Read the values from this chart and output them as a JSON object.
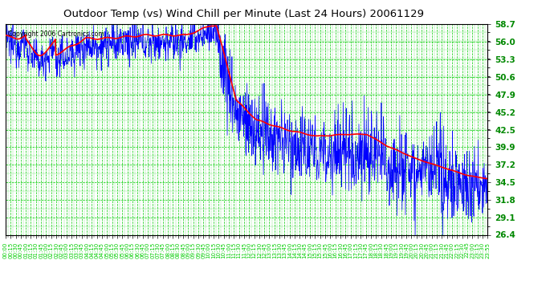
{
  "title": "Outdoor Temp (vs) Wind Chill per Minute (Last 24 Hours) 20061129",
  "copyright_text": "Copyright 2006 Cartronics.com",
  "y_ticks": [
    26.4,
    29.1,
    31.8,
    34.5,
    37.2,
    39.9,
    42.5,
    45.2,
    47.9,
    50.6,
    53.3,
    56.0,
    58.7
  ],
  "y_min": 26.4,
  "y_max": 58.7,
  "x_tick_labels": [
    "00:00",
    "00:15",
    "00:30",
    "00:45",
    "01:00",
    "01:15",
    "01:30",
    "01:45",
    "02:00",
    "02:15",
    "02:30",
    "02:45",
    "03:00",
    "03:15",
    "03:30",
    "03:45",
    "04:00",
    "04:15",
    "04:30",
    "04:45",
    "05:00",
    "05:15",
    "05:30",
    "05:45",
    "06:00",
    "06:15",
    "06:30",
    "06:45",
    "07:00",
    "07:15",
    "07:30",
    "07:45",
    "08:00",
    "08:15",
    "08:30",
    "08:45",
    "09:00",
    "09:15",
    "09:30",
    "09:45",
    "10:00",
    "10:15",
    "10:30",
    "10:45",
    "11:00",
    "11:15",
    "11:30",
    "11:45",
    "12:00",
    "12:15",
    "12:30",
    "12:45",
    "13:00",
    "13:15",
    "13:30",
    "13:45",
    "14:00",
    "14:15",
    "14:30",
    "14:45",
    "15:00",
    "15:15",
    "15:30",
    "15:45",
    "16:00",
    "16:15",
    "16:30",
    "16:45",
    "17:00",
    "17:15",
    "17:30",
    "17:45",
    "18:00",
    "18:15",
    "18:30",
    "18:45",
    "19:00",
    "19:15",
    "19:30",
    "19:45",
    "20:00",
    "20:15",
    "20:30",
    "20:45",
    "21:00",
    "21:15",
    "21:30",
    "21:45",
    "22:00",
    "22:15",
    "22:30",
    "22:45",
    "23:00",
    "23:15",
    "23:30",
    "23:55"
  ],
  "bg_color": "#ffffff",
  "plot_bg_color": "#ffffff",
  "grid_color": "#00cc00",
  "border_color": "#000000",
  "line_blue_color": "#0000ff",
  "line_red_color": "#ff0000",
  "title_color": "#000000",
  "copyright_color": "#000000",
  "tick_label_color": "#00cc00",
  "tick_label_color_y": "#008800"
}
